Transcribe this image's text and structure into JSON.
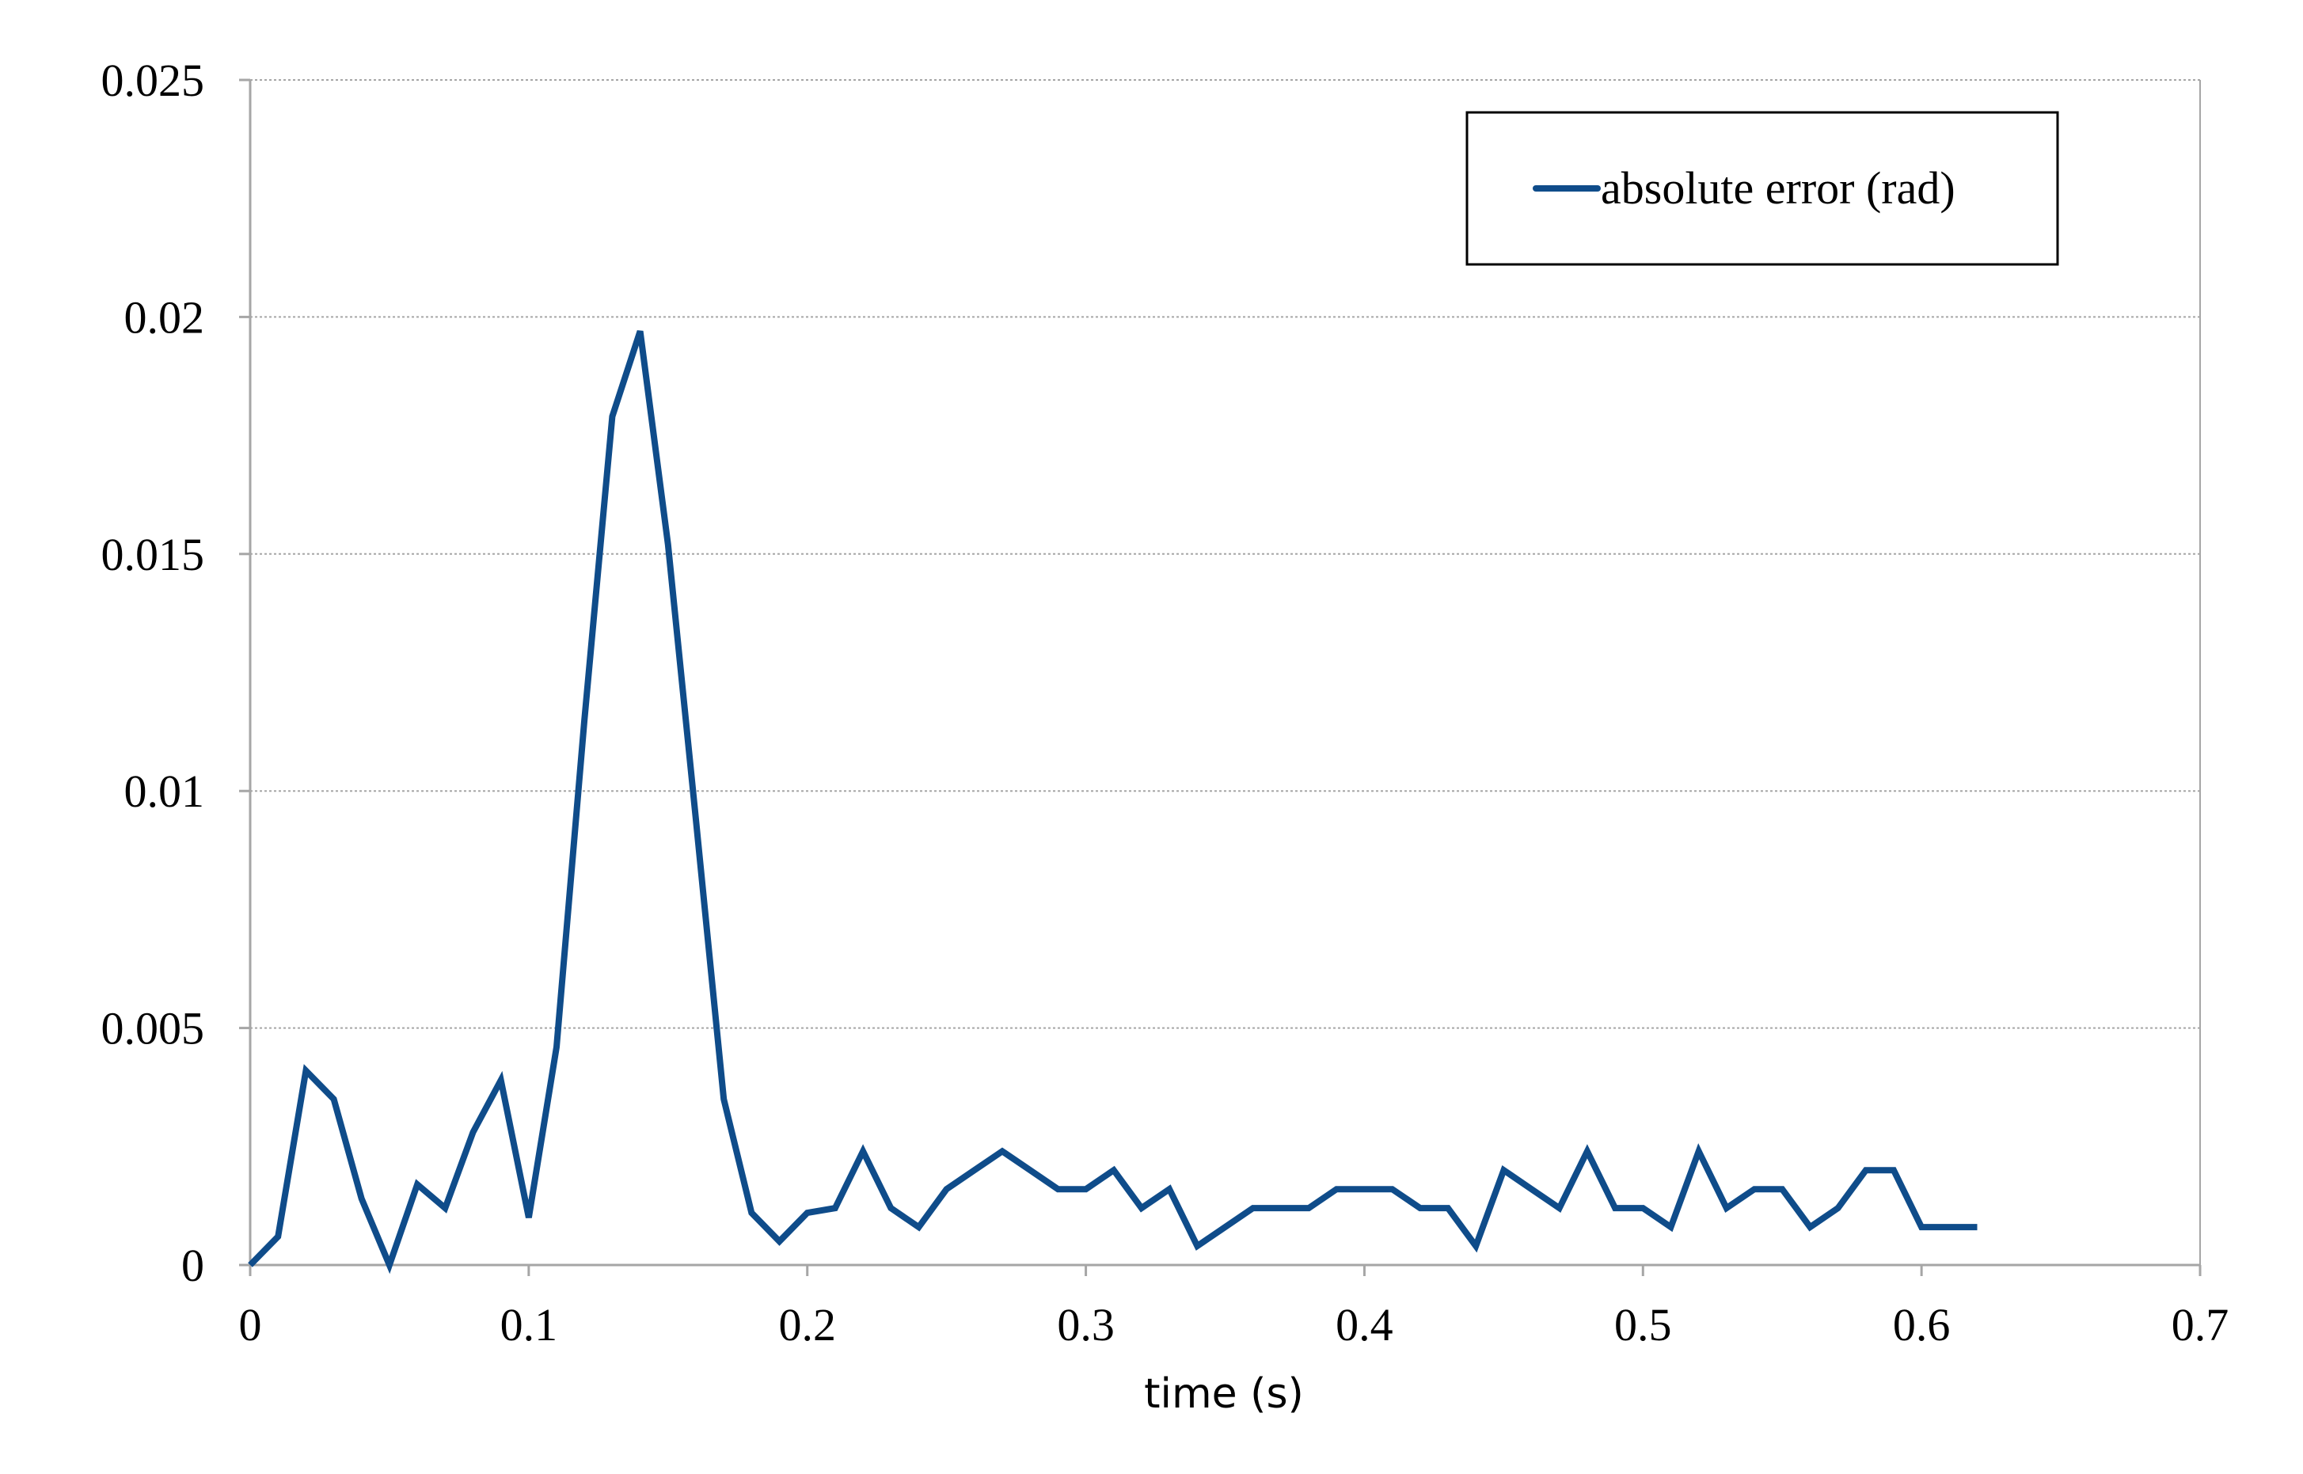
{
  "chart_data": {
    "type": "line",
    "title": "",
    "xlabel": "time (s)",
    "ylabel": "",
    "xlim": [
      0,
      0.7
    ],
    "ylim": [
      0,
      0.025
    ],
    "x_ticks": [
      "0",
      "0.1",
      "0.2",
      "0.3",
      "0.4",
      "0.5",
      "0.6",
      "0.7"
    ],
    "y_ticks": [
      "0",
      "0.005",
      "0.01",
      "0.015",
      "0.02",
      "0.025"
    ],
    "grid": "horizontal",
    "legend_position": "top-right",
    "colors": {
      "series": "#0f4c8a",
      "grid": "#a6a6a6",
      "axis": "#a6a6a6"
    },
    "series": [
      {
        "name": "absolute error (rad)",
        "x": [
          0,
          0.01,
          0.02,
          0.03,
          0.04,
          0.05,
          0.06,
          0.07,
          0.08,
          0.09,
          0.1,
          0.11,
          0.12,
          0.13,
          0.14,
          0.15,
          0.16,
          0.17,
          0.18,
          0.19,
          0.2,
          0.21,
          0.22,
          0.23,
          0.24,
          0.25,
          0.26,
          0.27,
          0.28,
          0.29,
          0.3,
          0.31,
          0.32,
          0.33,
          0.34,
          0.35,
          0.36,
          0.37,
          0.38,
          0.39,
          0.4,
          0.41,
          0.42,
          0.43,
          0.44,
          0.45,
          0.46,
          0.47,
          0.48,
          0.49,
          0.5,
          0.51,
          0.52,
          0.53,
          0.54,
          0.55,
          0.56,
          0.57,
          0.58,
          0.59,
          0.6,
          0.61,
          0.62
        ],
        "values": [
          0,
          0.0006,
          0.0041,
          0.0035,
          0.0014,
          0.0,
          0.0017,
          0.0012,
          0.0028,
          0.0039,
          0.001,
          0.0046,
          0.0115,
          0.0179,
          0.0197,
          0.0152,
          0.0094,
          0.0035,
          0.0011,
          0.0005,
          0.0011,
          0.0012,
          0.0024,
          0.0012,
          0.0008,
          0.0016,
          0.002,
          0.0024,
          0.002,
          0.0016,
          0.0016,
          0.002,
          0.0012,
          0.0016,
          0.0004,
          0.0008,
          0.0012,
          0.0012,
          0.0012,
          0.0016,
          0.0016,
          0.0016,
          0.0012,
          0.0012,
          0.0004,
          0.002,
          0.0016,
          0.0012,
          0.0024,
          0.0012,
          0.0012,
          0.0008,
          0.0024,
          0.0012,
          0.0016,
          0.0016,
          0.0008,
          0.0012,
          0.002,
          0.002,
          0.0008,
          0.0008,
          0.0008
        ]
      }
    ]
  }
}
